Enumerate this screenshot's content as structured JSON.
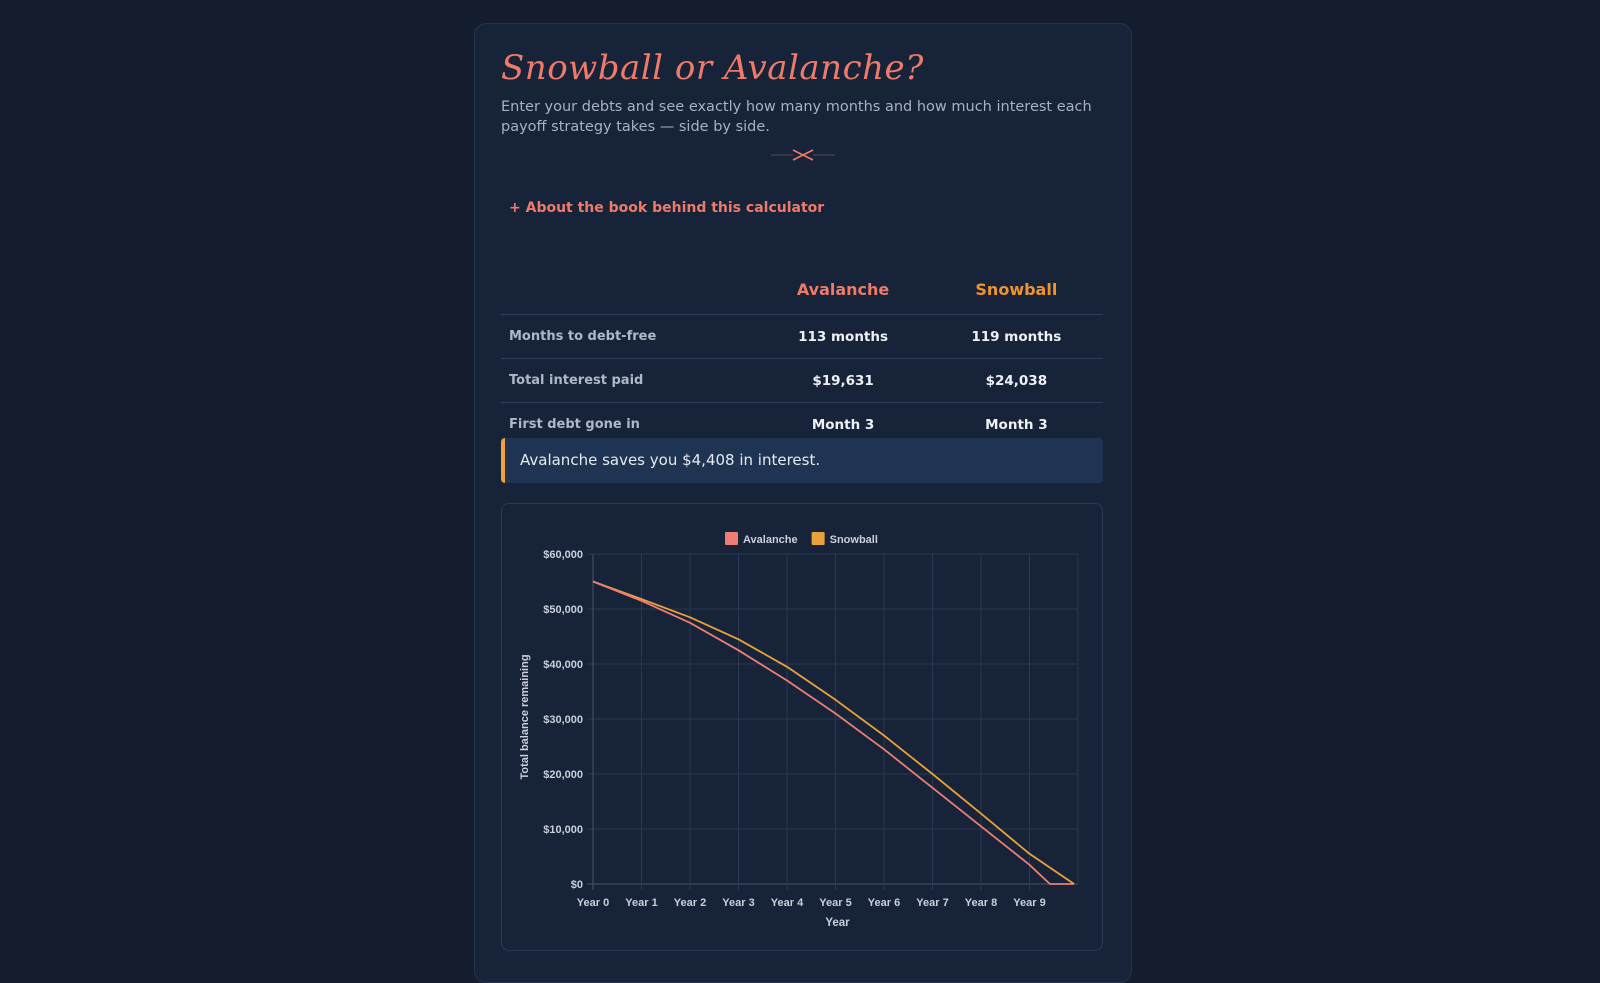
{
  "header": {
    "title": "Snowball or Avalanche?",
    "subtitle": "Enter your debts and see exactly how many months and how much interest each payoff strategy takes — side by side.",
    "divider_icon": "bow-ornament-icon",
    "about_link": "+ About the book behind this calculator"
  },
  "comparison": {
    "columns": [
      "Avalanche",
      "Snowball"
    ],
    "column_colors": [
      "#f07a6a",
      "#f0932e"
    ],
    "rows": [
      {
        "label": "Months to debt-free",
        "avalanche": "113 months",
        "snowball": "119 months"
      },
      {
        "label": "Total interest paid",
        "avalanche": "$19,631",
        "snowball": "$24,038"
      },
      {
        "label": "First debt gone in",
        "avalanche": "Month 3",
        "snowball": "Month 3"
      }
    ]
  },
  "callout": {
    "text": "Avalanche saves you $4,408 in interest.",
    "accent": "#f0a03c"
  },
  "chart_data": {
    "type": "line",
    "title": "",
    "xlabel": "Year",
    "ylabel": "Total balance remaining",
    "x_ticks": [
      "Year 0",
      "Year 1",
      "Year 2",
      "Year 3",
      "Year 4",
      "Year 5",
      "Year 6",
      "Year 7",
      "Year 8",
      "Year 9"
    ],
    "y_ticks": [
      "$0",
      "$10,000",
      "$20,000",
      "$30,000",
      "$40,000",
      "$50,000",
      "$60,000"
    ],
    "ylim": [
      0,
      60000
    ],
    "xlim": [
      0,
      10
    ],
    "grid": true,
    "legend_position": "top",
    "series": [
      {
        "name": "Avalanche",
        "color": "#ee7d74",
        "x": [
          0,
          1,
          2,
          3,
          4,
          5,
          6,
          7,
          8,
          9,
          9.42,
          9.92
        ],
        "y": [
          55000,
          51500,
          47500,
          42500,
          37000,
          31000,
          24500,
          17500,
          10500,
          3500,
          0,
          0
        ]
      },
      {
        "name": "Snowball",
        "color": "#e9a23b",
        "x": [
          0,
          1,
          2,
          3,
          4,
          5,
          6,
          7,
          8,
          9,
          9.92
        ],
        "y": [
          55000,
          51800,
          48500,
          44500,
          39500,
          33500,
          27000,
          20000,
          12800,
          5500,
          0
        ]
      }
    ]
  }
}
